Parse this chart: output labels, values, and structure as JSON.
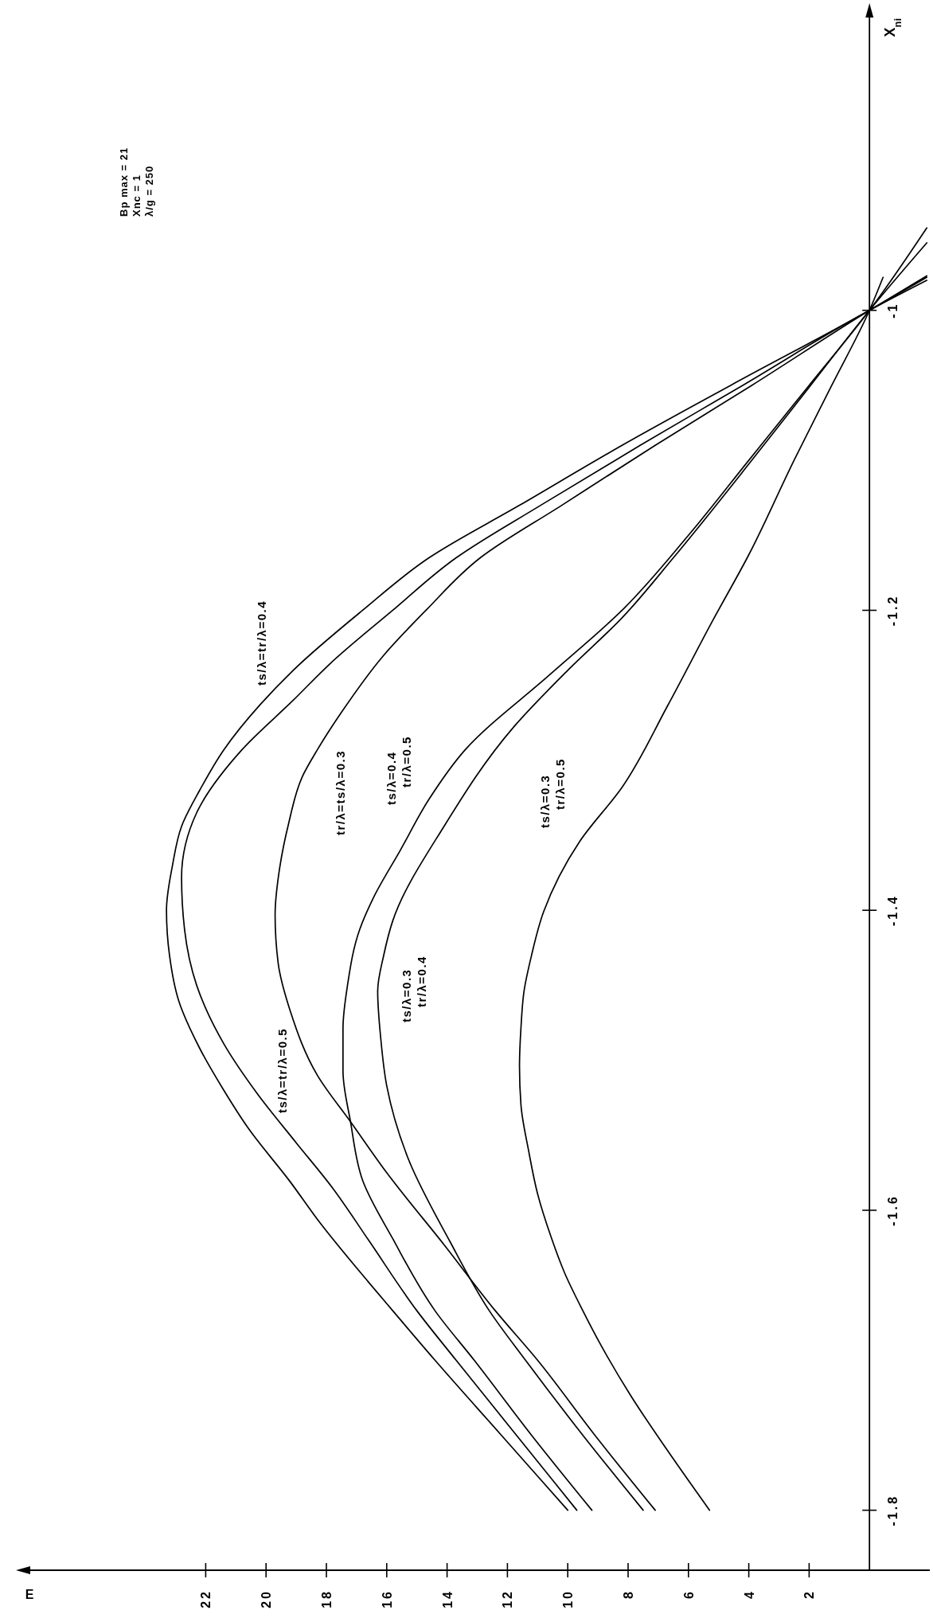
{
  "chart_data": {
    "type": "line",
    "xlabel": "E",
    "ylabel": "X$_{ni}$",
    "xlim": [
      28,
      -2
    ],
    "xticks": [
      2,
      4,
      6,
      8,
      10,
      12,
      14,
      16,
      18,
      20,
      22
    ],
    "ylim": [
      -1.84,
      -0.8
    ],
    "yticks": [
      -1.8,
      -1.6,
      -1.4,
      -1.2,
      -1
    ],
    "annotations": [
      "Bp max = 21",
      "Xnc = 1",
      "λ/g = 250"
    ],
    "marker": "none",
    "line_style": "solid",
    "series": [
      {
        "name": "ts/λ=tr/λ=0.4",
        "color": "#000000",
        "values": [
          -1.8,
          -1.75,
          -1.7,
          -1.667,
          -1.648,
          -1.606,
          -1.581,
          -1.545,
          -1.52,
          -1.492,
          -1.46,
          -1.43,
          -1.4,
          -1.37,
          -1.344,
          -1.32,
          -1.293,
          -1.263,
          -1.24,
          -1.2,
          -1.165,
          -1.13,
          -1.09,
          -1.05,
          -1.0,
          -0.978
        ],
        "x": [
          10.0,
          12.2,
          14.4,
          15.8,
          16.6,
          18.3,
          19.2,
          20.6,
          21.4,
          22.2,
          22.9,
          23.2,
          23.3,
          23.1,
          22.8,
          22.2,
          21.4,
          20.2,
          19.1,
          16.8,
          14.6,
          11.6,
          8.2,
          4.6,
          0,
          -1.9
        ]
      },
      {
        "name": "ts/λ=tr/λ=0.5",
        "color": "#000000",
        "values": [
          -1.8,
          -1.75,
          -1.7,
          -1.667,
          -1.62,
          -1.585,
          -1.555,
          -1.522,
          -1.489,
          -1.45,
          -1.413,
          -1.378,
          -1.335,
          -1.293,
          -1.26,
          -1.236,
          -1.2,
          -1.165,
          -1.13,
          -1.09,
          -1.05,
          -1.0,
          -0.98
        ],
        "x": [
          9.7,
          11.7,
          13.7,
          15.0,
          16.6,
          17.8,
          19.0,
          20.3,
          21.4,
          22.3,
          22.7,
          22.8,
          22.3,
          20.8,
          19.1,
          17.9,
          15.8,
          13.7,
          10.9,
          7.6,
          4.2,
          0,
          -1.9
        ]
      },
      {
        "name": "tr/λ=ts/λ=0.3",
        "color": "#000000",
        "values": [
          -1.8,
          -1.75,
          -1.7,
          -1.667,
          -1.623,
          -1.575,
          -1.541,
          -1.51,
          -1.467,
          -1.435,
          -1.403,
          -1.372,
          -1.342,
          -1.311,
          -1.293,
          -1.268,
          -1.23,
          -1.2,
          -1.165,
          -1.13,
          -1.09,
          -1.05,
          -1.0,
          -0.977
        ],
        "x": [
          7.1,
          9.1,
          11.0,
          12.4,
          14.1,
          16.0,
          17.2,
          18.3,
          19.2,
          19.6,
          19.7,
          19.55,
          19.25,
          18.8,
          18.3,
          17.5,
          16.1,
          14.7,
          12.9,
          10.2,
          7.1,
          3.9,
          0,
          -1.9
        ]
      },
      {
        "name": "ts/λ=0.4 tr/λ=0.5",
        "color": "#000000",
        "values": [
          -1.8,
          -1.75,
          -1.7,
          -1.667,
          -1.619,
          -1.58,
          -1.541,
          -1.507,
          -1.479,
          -1.45,
          -1.413,
          -1.392,
          -1.36,
          -1.326,
          -1.293,
          -1.243,
          -1.2,
          -1.15,
          -1.1,
          -1.05,
          -1.0,
          -0.945
        ],
        "x": [
          9.2,
          11.2,
          13.1,
          14.4,
          15.8,
          16.8,
          17.2,
          17.45,
          17.45,
          17.3,
          16.9,
          16.45,
          15.55,
          14.6,
          13.4,
          10.6,
          8.2,
          6.0,
          4.0,
          2.0,
          0,
          -1.9
        ]
      },
      {
        "name": "ts/λ=0.3 tr/λ=0.4",
        "color": "#000000",
        "values": [
          -1.8,
          -1.75,
          -1.7,
          -1.667,
          -1.621,
          -1.565,
          -1.517,
          -1.485,
          -1.454,
          -1.43,
          -1.407,
          -1.344,
          -1.278,
          -1.24,
          -1.205,
          -1.165,
          -1.1,
          -1.05,
          -1.0,
          -0.955
        ],
        "x": [
          7.5,
          9.5,
          11.4,
          12.6,
          13.9,
          15.3,
          16.0,
          16.2,
          16.3,
          16.1,
          15.8,
          14.1,
          11.8,
          10.0,
          8.2,
          6.5,
          3.9,
          1.95,
          0,
          -1.9
        ]
      },
      {
        "name": "ts/λ=0.3 tr/λ=0.5",
        "color": "#000000",
        "values": [
          -1.8,
          -1.76,
          -1.724,
          -1.69,
          -1.667,
          -1.642,
          -1.618,
          -1.589,
          -1.56,
          -1.53,
          -1.504,
          -1.478,
          -1.454,
          -1.43,
          -1.401,
          -1.354,
          -1.318,
          -1.264,
          -1.207,
          -1.163,
          -1.1,
          -1.05,
          -1.0,
          -0.978
        ],
        "x": [
          5.3,
          6.7,
          7.9,
          8.9,
          9.5,
          10.1,
          10.55,
          11.0,
          11.3,
          11.55,
          11.6,
          11.55,
          11.45,
          11.2,
          10.8,
          9.6,
          8.2,
          6.7,
          5.2,
          4.0,
          2.5,
          1.25,
          0,
          -0.45
        ]
      }
    ]
  }
}
